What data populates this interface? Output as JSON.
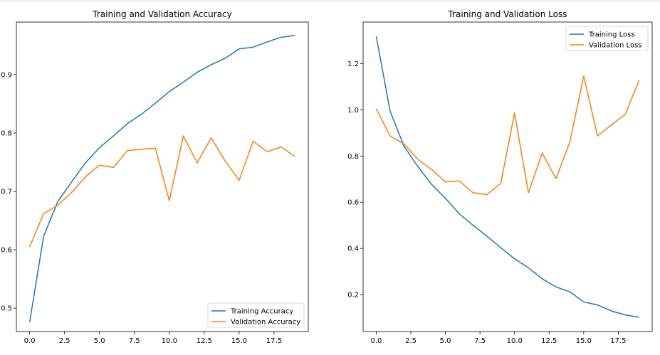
{
  "chart_data": [
    {
      "type": "line",
      "title": "Training and Validation Accuracy",
      "xlabel": "",
      "ylabel": "",
      "x": [
        0,
        1,
        2,
        3,
        4,
        5,
        6,
        7,
        8,
        9,
        10,
        11,
        12,
        13,
        14,
        15,
        16,
        17,
        18,
        19
      ],
      "xlim": [
        -0.95,
        19.95
      ],
      "ylim": [
        0.46,
        0.99
      ],
      "xticks": [
        0.0,
        2.5,
        5.0,
        7.5,
        10.0,
        12.5,
        15.0,
        17.5
      ],
      "xtick_labels": [
        "0.0",
        "2.5",
        "5.0",
        "7.5",
        "10.0",
        "12.5",
        "15.0",
        "17.5"
      ],
      "yticks": [
        0.5,
        0.6,
        0.7,
        0.8,
        0.9
      ],
      "ytick_labels": [
        "0.5",
        "0.6",
        "0.7",
        "0.8",
        "0.9"
      ],
      "grid": false,
      "legend_position": "lower-right",
      "series": [
        {
          "name": "Training Accuracy",
          "color": "#1f77b4",
          "values": [
            0.476,
            0.623,
            0.682,
            0.716,
            0.749,
            0.775,
            0.795,
            0.816,
            0.832,
            0.851,
            0.871,
            0.887,
            0.904,
            0.917,
            0.928,
            0.944,
            0.947,
            0.956,
            0.964,
            0.967
          ]
        },
        {
          "name": "Validation Accuracy",
          "color": "#ff7f0e",
          "values": [
            0.605,
            0.662,
            0.676,
            0.698,
            0.725,
            0.745,
            0.741,
            0.77,
            0.772,
            0.774,
            0.684,
            0.795,
            0.749,
            0.792,
            0.752,
            0.719,
            0.786,
            0.768,
            0.776,
            0.76
          ]
        }
      ]
    },
    {
      "type": "line",
      "title": "Training and Validation Loss",
      "xlabel": "",
      "ylabel": "",
      "x": [
        0,
        1,
        2,
        3,
        4,
        5,
        6,
        7,
        8,
        9,
        10,
        11,
        12,
        13,
        14,
        15,
        16,
        17,
        18,
        19
      ],
      "xlim": [
        -0.95,
        19.95
      ],
      "ylim": [
        0.04,
        1.38
      ],
      "xticks": [
        0.0,
        2.5,
        5.0,
        7.5,
        10.0,
        12.5,
        15.0,
        17.5
      ],
      "xtick_labels": [
        "0.0",
        "2.5",
        "5.0",
        "7.5",
        "10.0",
        "12.5",
        "15.0",
        "17.5"
      ],
      "yticks": [
        0.2,
        0.4,
        0.6,
        0.8,
        1.0,
        1.2
      ],
      "ytick_labels": [
        "0.2",
        "0.4",
        "0.6",
        "0.8",
        "1.0",
        "1.2"
      ],
      "grid": false,
      "legend_position": "upper-right",
      "series": [
        {
          "name": "Training Loss",
          "color": "#1f77b4",
          "values": [
            1.318,
            0.995,
            0.843,
            0.755,
            0.677,
            0.617,
            0.55,
            0.5,
            0.453,
            0.403,
            0.355,
            0.316,
            0.268,
            0.233,
            0.212,
            0.168,
            0.155,
            0.129,
            0.112,
            0.102
          ]
        },
        {
          "name": "Validation Loss",
          "color": "#ff7f0e",
          "values": [
            1.005,
            0.887,
            0.852,
            0.786,
            0.742,
            0.688,
            0.692,
            0.641,
            0.633,
            0.681,
            0.986,
            0.641,
            0.813,
            0.702,
            0.861,
            1.146,
            0.887,
            0.935,
            0.98,
            1.127
          ]
        }
      ]
    }
  ]
}
